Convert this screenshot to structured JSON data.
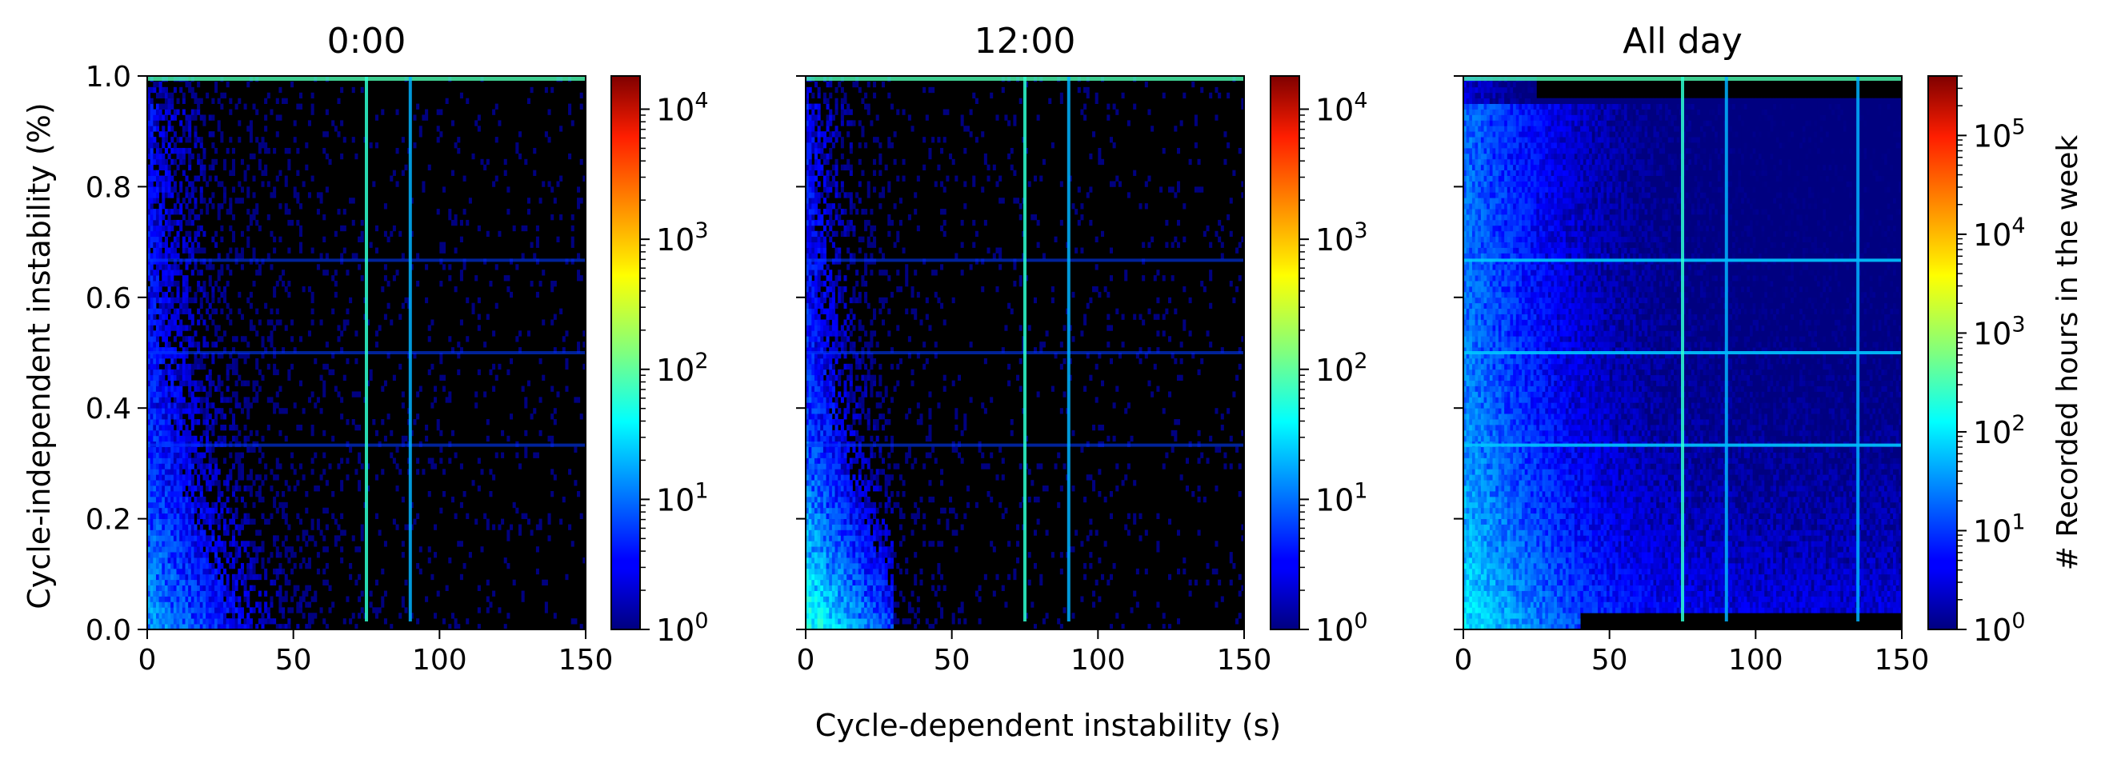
{
  "figure": {
    "xlabel": "Cycle-dependent instability (s)",
    "ylabel": "Cycle-independent instability (%)"
  },
  "chart_data": [
    {
      "type": "heatmap",
      "title": "0:00",
      "xlim": [
        0,
        150
      ],
      "ylim": [
        0,
        1.0
      ],
      "x_ticks": [
        "0",
        "50",
        "100",
        "150"
      ],
      "y_ticks": [
        "0.0",
        "0.2",
        "0.4",
        "0.6",
        "0.8",
        "1.0"
      ],
      "color_scale": "log",
      "colormap": "jet",
      "colorbar_range": [
        1,
        18000
      ],
      "colorbar_ticks": [
        {
          "base": "10",
          "exp": "0"
        },
        {
          "base": "10",
          "exp": "1"
        },
        {
          "base": "10",
          "exp": "2"
        },
        {
          "base": "10",
          "exp": "3"
        },
        {
          "base": "10",
          "exp": "4"
        }
      ],
      "colorbar_label": "",
      "background": "#000000",
      "streaks_x": [
        75,
        90
      ]
    },
    {
      "type": "heatmap",
      "title": "12:00",
      "xlim": [
        0,
        150
      ],
      "ylim": [
        0,
        1.0
      ],
      "x_ticks": [
        "0",
        "50",
        "100",
        "150"
      ],
      "y_ticks": [
        "",
        "",
        "",
        "",
        "",
        ""
      ],
      "color_scale": "log",
      "colormap": "jet",
      "colorbar_range": [
        1,
        18000
      ],
      "colorbar_ticks": [
        {
          "base": "10",
          "exp": "0"
        },
        {
          "base": "10",
          "exp": "1"
        },
        {
          "base": "10",
          "exp": "2"
        },
        {
          "base": "10",
          "exp": "3"
        },
        {
          "base": "10",
          "exp": "4"
        }
      ],
      "colorbar_label": "",
      "background": "#000000",
      "streaks_x": [
        75,
        90
      ]
    },
    {
      "type": "heatmap",
      "title": "All day",
      "xlim": [
        0,
        150
      ],
      "ylim": [
        0,
        1.0
      ],
      "x_ticks": [
        "0",
        "50",
        "100",
        "150"
      ],
      "y_ticks": [
        "",
        "",
        "",
        "",
        "",
        ""
      ],
      "color_scale": "log",
      "colormap": "jet",
      "colorbar_range": [
        1,
        400000
      ],
      "colorbar_ticks": [
        {
          "base": "10",
          "exp": "0"
        },
        {
          "base": "10",
          "exp": "1"
        },
        {
          "base": "10",
          "exp": "2"
        },
        {
          "base": "10",
          "exp": "3"
        },
        {
          "base": "10",
          "exp": "4"
        },
        {
          "base": "10",
          "exp": "5"
        }
      ],
      "colorbar_label": "# Recorded hours in the week",
      "background": "#000000",
      "streaks_x": [
        75,
        90,
        135
      ]
    }
  ]
}
